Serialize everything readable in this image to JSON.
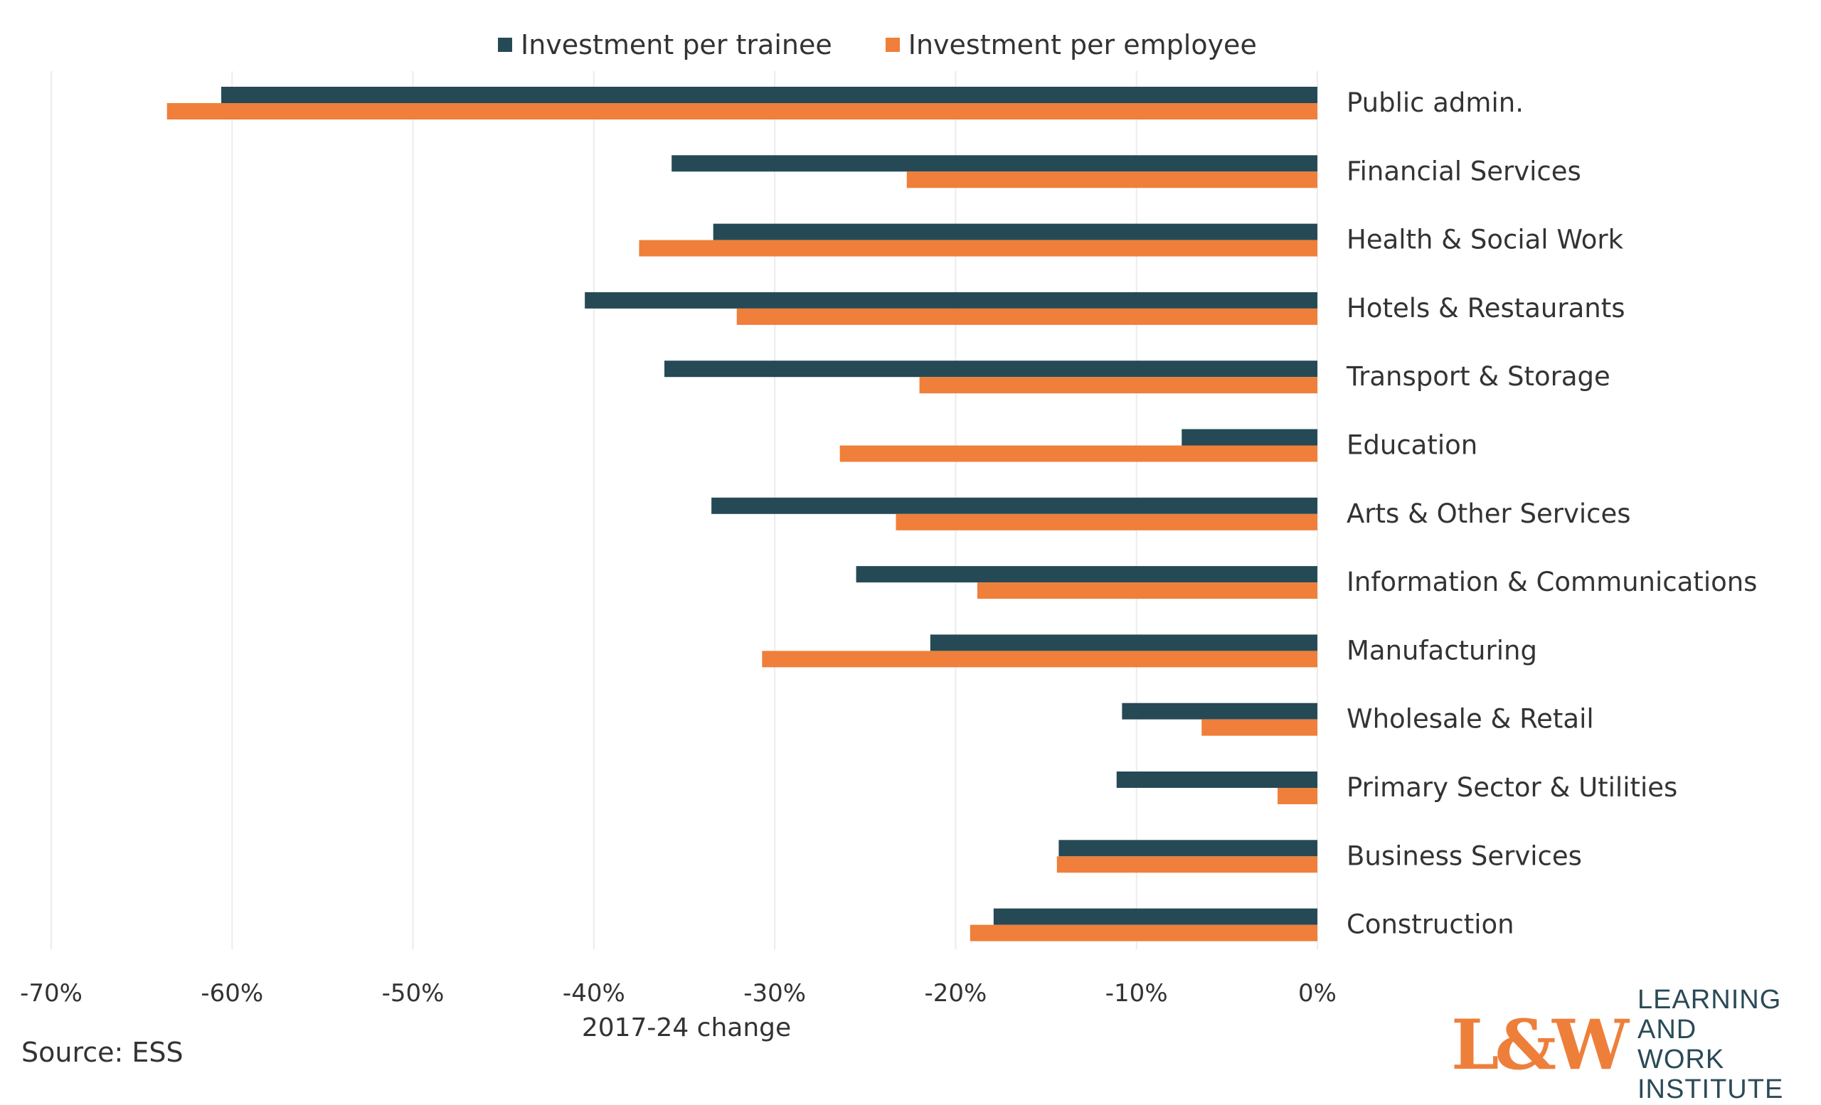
{
  "legend": {
    "trainee_label": "Investment per trainee",
    "employee_label": "Investment per employee"
  },
  "colors": {
    "trainee": "#254a56",
    "employee": "#ef7f3a",
    "grid": "#ececec",
    "text": "#333333"
  },
  "source": "Source: ESS",
  "logo": {
    "mark": "L&W",
    "line1": "LEARNING AND",
    "line2": "WORK INSTITUTE"
  },
  "chart_data": {
    "type": "bar",
    "orientation": "horizontal",
    "title": "",
    "xlabel": "2017-24 change",
    "ylabel": "",
    "xlim": [
      -70,
      0
    ],
    "grid": true,
    "legend_position": "top",
    "ticks": [
      "-70%",
      "-60%",
      "-50%",
      "-40%",
      "-30%",
      "-20%",
      "-10%",
      "0%"
    ],
    "tick_values": [
      -70,
      -60,
      -50,
      -40,
      -30,
      -20,
      -10,
      0
    ],
    "categories": [
      "Public admin.",
      "Financial Services",
      "Health & Social Work",
      "Hotels & Restaurants",
      "Transport & Storage",
      "Education",
      "Arts & Other Services",
      "Information & Communications",
      "Manufacturing",
      "Wholesale & Retail",
      "Primary Sector & Utilities",
      "Business Services",
      "Construction"
    ],
    "series": [
      {
        "name": "Investment per trainee",
        "values": [
          -60.6,
          -35.7,
          -33.4,
          -40.5,
          -36.1,
          -7.5,
          -33.5,
          -25.5,
          -21.4,
          -10.8,
          -11.1,
          -14.3,
          -17.9
        ]
      },
      {
        "name": "Investment per employee",
        "values": [
          -63.6,
          -22.7,
          -37.5,
          -32.1,
          -22.0,
          -26.4,
          -23.3,
          -18.8,
          -30.7,
          -6.4,
          -2.2,
          -14.4,
          -19.2
        ]
      }
    ]
  }
}
